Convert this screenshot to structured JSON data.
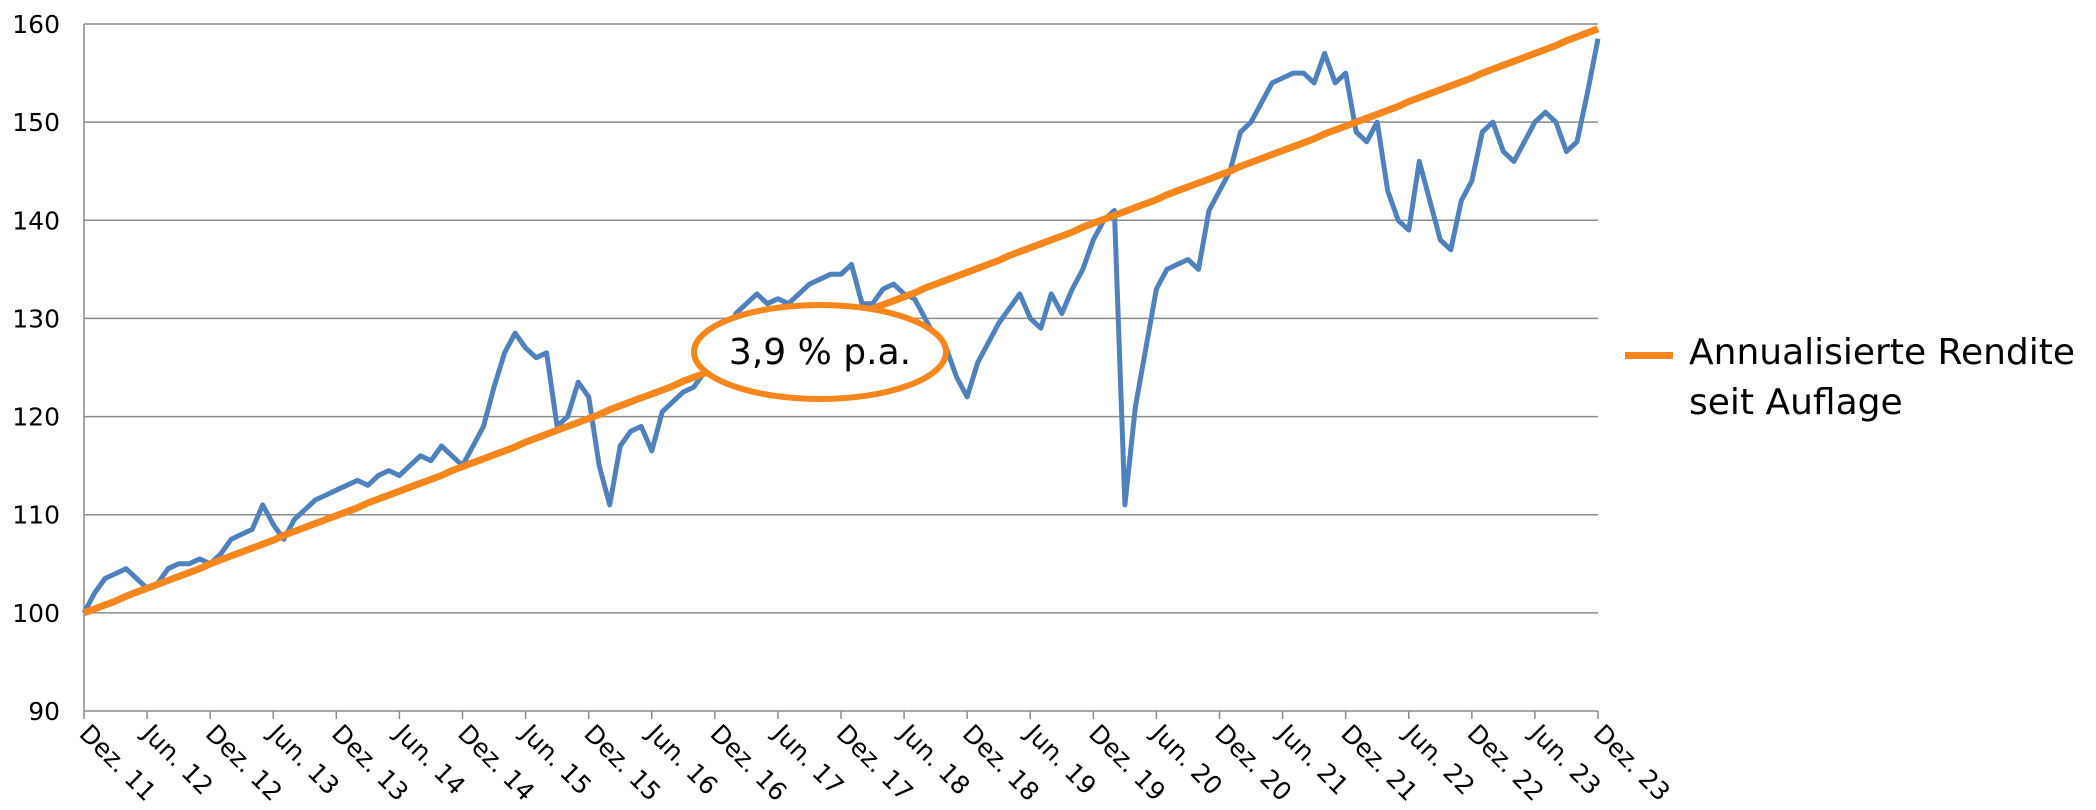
{
  "chart_data": {
    "type": "line",
    "annotation": "3,9 % p.a.",
    "categories": [
      "Dez. 11",
      null,
      null,
      null,
      null,
      null,
      "Jun. 12",
      null,
      null,
      null,
      null,
      null,
      "Dez. 12",
      null,
      null,
      null,
      null,
      null,
      "Jun. 13",
      null,
      null,
      null,
      null,
      null,
      "Dez. 13",
      null,
      null,
      null,
      null,
      null,
      "Jun. 14",
      null,
      null,
      null,
      null,
      null,
      "Dez. 14",
      null,
      null,
      null,
      null,
      null,
      "Jun. 15",
      null,
      null,
      null,
      null,
      null,
      "Dez. 15",
      null,
      null,
      null,
      null,
      null,
      "Jun. 16",
      null,
      null,
      null,
      null,
      null,
      "Dez. 16",
      null,
      null,
      null,
      null,
      null,
      "Jun. 17",
      null,
      null,
      null,
      null,
      null,
      "Dez. 17",
      null,
      null,
      null,
      null,
      null,
      "Jun. 18",
      null,
      null,
      null,
      null,
      null,
      "Dez. 18",
      null,
      null,
      null,
      null,
      null,
      "Jun. 19",
      null,
      null,
      null,
      null,
      null,
      "Dez. 19",
      null,
      null,
      null,
      null,
      null,
      "Jun. 20",
      null,
      null,
      null,
      null,
      null,
      "Dez. 20",
      null,
      null,
      null,
      null,
      null,
      "Jun. 21",
      null,
      null,
      null,
      null,
      null,
      "Dez. 21",
      null,
      null,
      null,
      null,
      null,
      "Jun. 22",
      null,
      null,
      null,
      null,
      null,
      "Dez. 22",
      null,
      null,
      null,
      null,
      null,
      "Jun. 23",
      null,
      null,
      null,
      null,
      null,
      "Dez. 23"
    ],
    "series": [
      {
        "color": "#4f81bd",
        "values": [
          100,
          102,
          103.5,
          104,
          104.5,
          103.5,
          102.5,
          103,
          104.5,
          105,
          105,
          105.5,
          105,
          106,
          107.5,
          108,
          108.5,
          111,
          109,
          107.5,
          109.5,
          110.5,
          111.5,
          112,
          112.5,
          113,
          113.5,
          113,
          114,
          114.5,
          114,
          115,
          116,
          115.5,
          117,
          116,
          115,
          117,
          119,
          123,
          126.5,
          128.5,
          127,
          126,
          126.5,
          119,
          120,
          123.5,
          122,
          115,
          111,
          117,
          118.5,
          119,
          116.5,
          120.5,
          121.5,
          122.5,
          123,
          124.5,
          126,
          128,
          130.5,
          131.5,
          132.5,
          131.5,
          132,
          131.5,
          132.5,
          133.5,
          134,
          134.5,
          134.5,
          135.5,
          131.5,
          131.5,
          133,
          133.5,
          132.5,
          132,
          130,
          128,
          127,
          124,
          122,
          125.5,
          127.5,
          129.5,
          131,
          132.5,
          130,
          129,
          132.5,
          130.5,
          133,
          135,
          138,
          140,
          141,
          111,
          121,
          127,
          133,
          135,
          135.5,
          136,
          135,
          141,
          143,
          145,
          149,
          150,
          152,
          154,
          154.5,
          155,
          155,
          154,
          157,
          154,
          155,
          149,
          148,
          150,
          143,
          140,
          139,
          146,
          142,
          138,
          137,
          142,
          144,
          149,
          150,
          147,
          146,
          148,
          150,
          151,
          150,
          147,
          148,
          153,
          158.5
        ]
      },
      {
        "name": "Annualisierte Rendite seit Auflage",
        "color": "#f7861c",
        "values": [
          100.0,
          100.4,
          100.8,
          101.2,
          101.7,
          102.1,
          102.5,
          102.9,
          103.3,
          103.7,
          104.1,
          104.5,
          105.0,
          105.4,
          105.8,
          106.2,
          106.6,
          107.0,
          107.4,
          107.9,
          108.3,
          108.7,
          109.1,
          109.5,
          109.9,
          110.3,
          110.7,
          111.2,
          111.6,
          112.0,
          112.4,
          112.8,
          113.2,
          113.6,
          114.0,
          114.5,
          114.9,
          115.3,
          115.7,
          116.1,
          116.5,
          116.9,
          117.4,
          117.8,
          118.2,
          118.6,
          119.0,
          119.4,
          119.8,
          120.2,
          120.7,
          121.1,
          121.5,
          121.9,
          122.3,
          122.7,
          123.1,
          123.6,
          124.0,
          124.4,
          124.8,
          125.2,
          125.6,
          126.0,
          126.4,
          126.9,
          127.3,
          127.7,
          128.1,
          128.5,
          128.9,
          129.3,
          129.8,
          130.2,
          130.6,
          131.0,
          131.4,
          131.8,
          132.2,
          132.6,
          133.1,
          133.5,
          133.9,
          134.3,
          134.7,
          135.1,
          135.5,
          135.9,
          136.4,
          136.8,
          137.2,
          137.6,
          138.0,
          138.4,
          138.8,
          139.3,
          139.7,
          140.1,
          140.5,
          140.9,
          141.3,
          141.7,
          142.1,
          142.6,
          143.0,
          143.4,
          143.8,
          144.2,
          144.6,
          145.0,
          145.5,
          145.9,
          146.3,
          146.7,
          147.1,
          147.5,
          147.9,
          148.3,
          148.8,
          149.2,
          149.6,
          150.0,
          150.4,
          150.8,
          151.2,
          151.6,
          152.1,
          152.5,
          152.9,
          153.3,
          153.7,
          154.1,
          154.5,
          155.0,
          155.4,
          155.8,
          156.2,
          156.6,
          157.0,
          157.4,
          157.8,
          158.3,
          158.7,
          159.1,
          159.5
        ]
      }
    ],
    "ylim": [
      90,
      160
    ],
    "yticks": [
      90,
      100,
      110,
      120,
      130,
      140,
      150,
      160
    ],
    "grid": true,
    "legend": "right"
  }
}
